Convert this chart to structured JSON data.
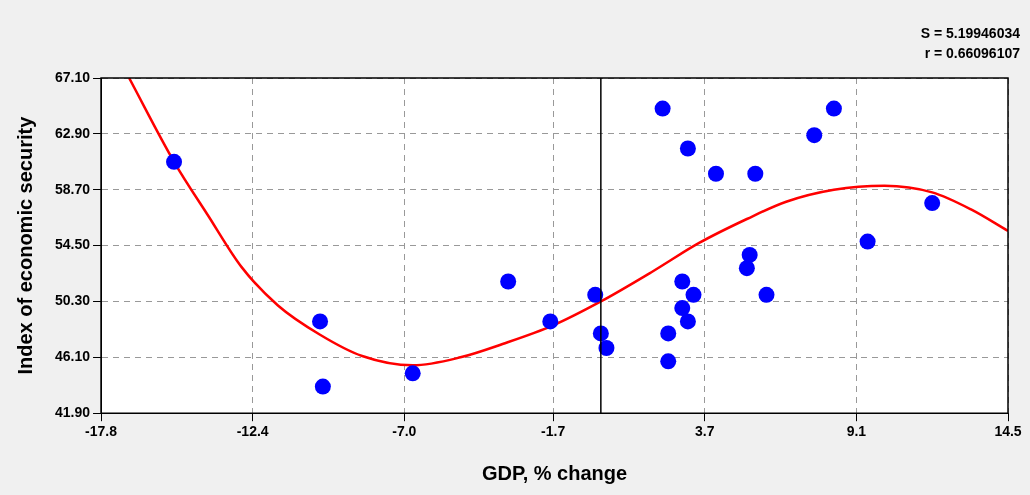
{
  "chart_data": {
    "type": "scatter",
    "xlabel": "GDP, % change",
    "ylabel": "Index of economic security",
    "annotations": [
      "S = 5.19946034",
      "r = 0.66096107"
    ],
    "xlim": [
      -17.8,
      14.5
    ],
    "xticks": [
      {
        "value": -17.8,
        "label": "-17.8"
      },
      {
        "value": -12.4,
        "label": "-12.4"
      },
      {
        "value": -7.0,
        "label": "-7.0"
      },
      {
        "value": -1.7,
        "label": "-1.7"
      },
      {
        "value": 3.7,
        "label": "3.7"
      },
      {
        "value": 9.1,
        "label": "9.1"
      },
      {
        "value": 14.5,
        "label": "14.5"
      }
    ],
    "ylim": [
      41.9,
      67.1
    ],
    "yticks": [
      {
        "value": 41.9,
        "label": "41.90"
      },
      {
        "value": 46.1,
        "label": "46.10"
      },
      {
        "value": 50.3,
        "label": "50.30"
      },
      {
        "value": 54.5,
        "label": "54.50"
      },
      {
        "value": 58.7,
        "label": "58.70"
      },
      {
        "value": 62.9,
        "label": "62.90"
      },
      {
        "value": 67.1,
        "label": "67.10"
      }
    ],
    "grid": true,
    "marker": "circle",
    "legend": false,
    "ref_lines": [
      {
        "axis": "x",
        "value": 0,
        "color": "#000000"
      }
    ],
    "series": [
      {
        "color": "#0000ff",
        "x": [
          -15.2,
          -10.0,
          -9.9,
          -6.7,
          -3.3,
          -1.8,
          -0.2,
          0.0,
          0.2,
          2.2,
          2.4,
          2.4,
          3.1,
          2.9,
          2.9,
          3.1,
          3.3,
          4.1,
          5.3,
          5.2,
          5.5,
          5.9,
          7.6,
          8.3,
          9.5,
          11.8
        ],
        "values": [
          60.8,
          48.8,
          43.9,
          44.9,
          51.8,
          48.8,
          50.8,
          47.9,
          46.8,
          64.8,
          47.9,
          45.8,
          61.8,
          51.8,
          49.8,
          48.8,
          50.8,
          59.9,
          53.8,
          52.8,
          59.9,
          50.8,
          62.8,
          64.8,
          54.8,
          57.7
        ]
      },
      {
        "type": "line",
        "color": "#ff0000",
        "marker": "none",
        "line_style": "solid",
        "x": [
          -16.8,
          -15.2,
          -14.0,
          -12.8,
          -11.5,
          -10.0,
          -8.5,
          -6.7,
          -5.0,
          -3.5,
          -1.7,
          0.0,
          1.8,
          3.5,
          5.2,
          6.6,
          8.3,
          10.1,
          11.8,
          13.2,
          14.5
        ],
        "values": [
          67.1,
          60.8,
          56.8,
          52.9,
          50.0,
          47.8,
          46.2,
          45.5,
          46.1,
          47.1,
          48.5,
          50.3,
          52.5,
          54.7,
          56.5,
          57.8,
          58.7,
          59.0,
          58.5,
          57.2,
          55.6
        ]
      }
    ]
  }
}
